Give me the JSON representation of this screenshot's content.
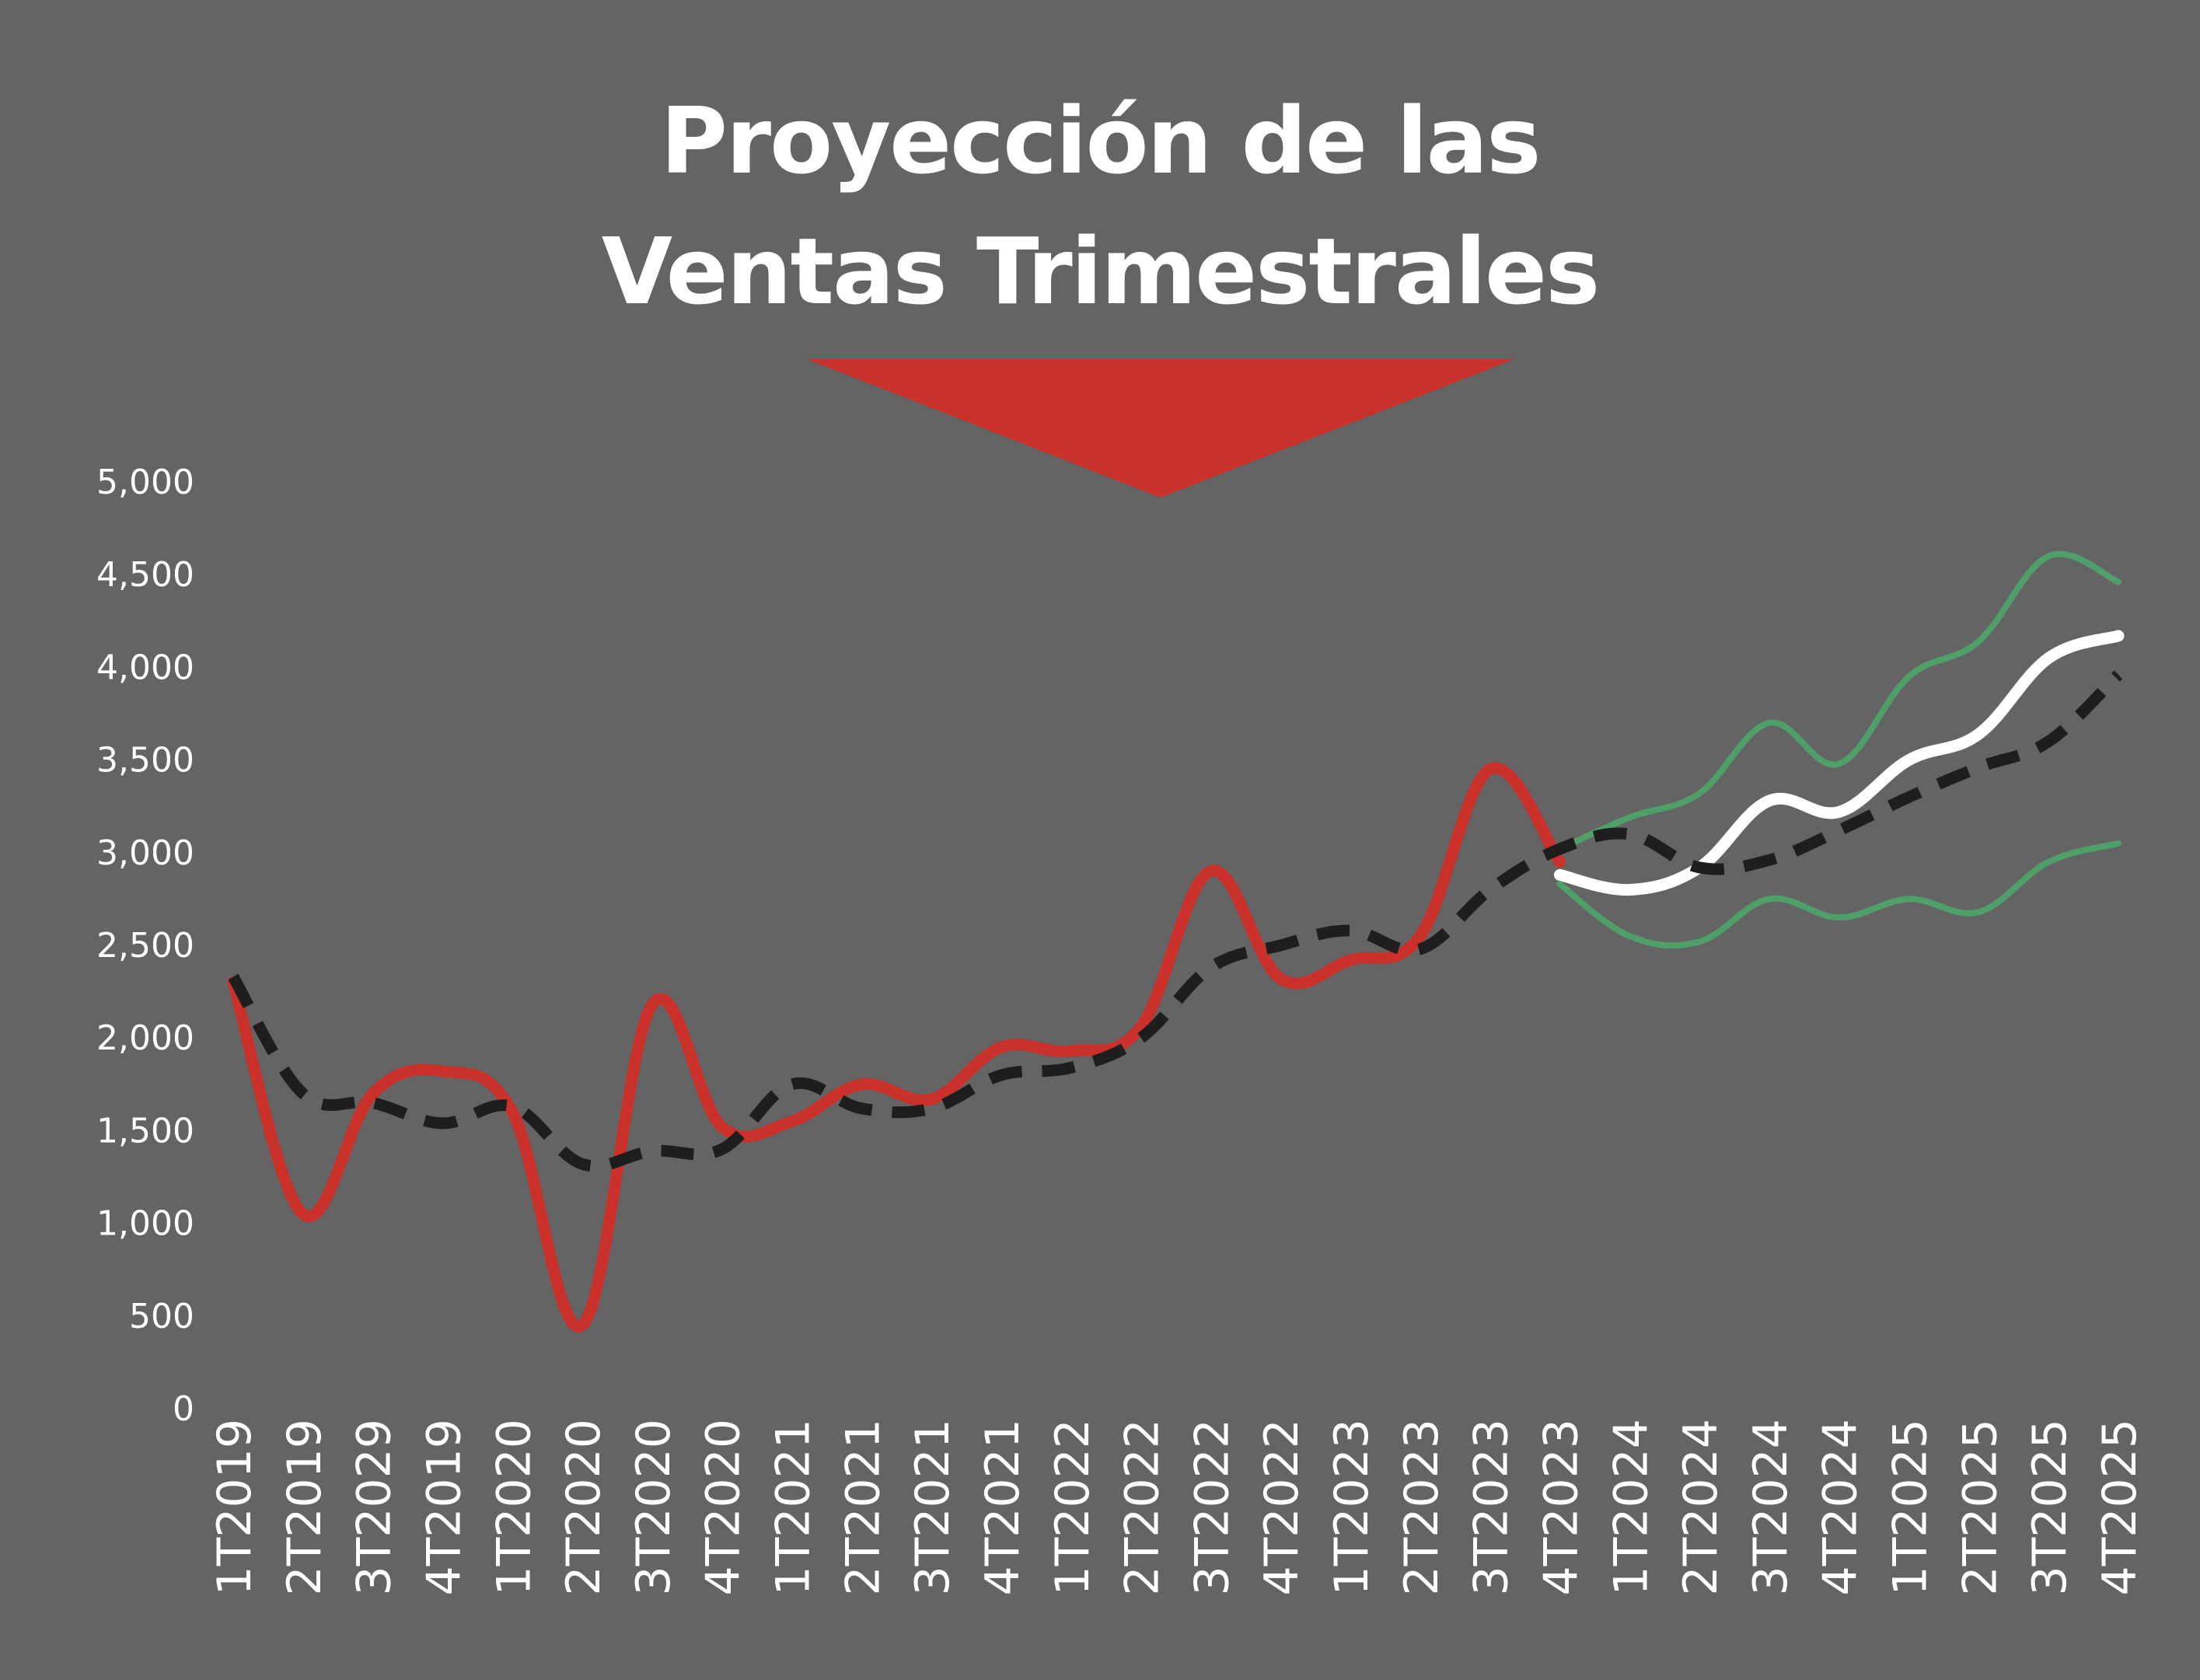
{
  "title": {
    "line1": "Proyección de las",
    "line2": "Ventas Trimestrales"
  },
  "colors": {
    "background": "#646464",
    "actual": "#c9312a",
    "trend": "#1e1e1e",
    "forecast": "#ffffff",
    "bounds": "#4ea068",
    "arrow": "#c9312a",
    "text": "#ffffff"
  },
  "chart_data": {
    "type": "line",
    "title": "Proyección de las Ventas Trimestrales",
    "xlabel": "",
    "ylabel": "",
    "ylim": [
      0,
      5000
    ],
    "yticks": [
      0,
      500,
      1000,
      1500,
      2000,
      2500,
      3000,
      3500,
      4000,
      4500,
      5000
    ],
    "ytick_labels": [
      "0",
      "500",
      "1,000",
      "1,500",
      "2,000",
      "2,500",
      "3,000",
      "3,500",
      "4,000",
      "4,500",
      "5,000"
    ],
    "categories": [
      "1T2019",
      "2T2019",
      "3T2029",
      "4T2019",
      "1T2020",
      "2T2020",
      "3T2020",
      "4T2020",
      "1T2021",
      "2T2021",
      "3T2021",
      "4T2021",
      "1T2022",
      "2T2022",
      "3T2022",
      "4T2022",
      "1T2023",
      "2T2023",
      "3T2023",
      "4T2023",
      "1T2024",
      "2T2024",
      "3T2024",
      "4T2024",
      "1T2025",
      "2T2025",
      "3T2025",
      "4T2025"
    ],
    "grid": false,
    "legend": "none",
    "series": [
      {
        "key": "actual",
        "style": "solid-thick",
        "color": "#c9312a",
        "values": [
          2300,
          1050,
          1700,
          1820,
          1600,
          450,
          2180,
          1520,
          1550,
          1750,
          1670,
          1950,
          1930,
          2060,
          2900,
          2320,
          2420,
          2550,
          3450,
          2950,
          null,
          null,
          null,
          null,
          null,
          null,
          null,
          null
        ]
      },
      {
        "key": "trend",
        "style": "dashed",
        "color": "#1e1e1e",
        "values": [
          2330,
          1700,
          1650,
          1540,
          1630,
          1320,
          1390,
          1400,
          1750,
          1620,
          1620,
          1800,
          1840,
          2000,
          2380,
          2500,
          2580,
          2480,
          2800,
          3020,
          3100,
          2920,
          2960,
          3120,
          3300,
          3460,
          3600,
          3960
        ]
      },
      {
        "key": "forecast",
        "style": "solid-thick",
        "color": "#ffffff",
        "values": [
          null,
          null,
          null,
          null,
          null,
          null,
          null,
          null,
          null,
          null,
          null,
          null,
          null,
          null,
          null,
          null,
          null,
          null,
          null,
          2880,
          2800,
          2920,
          3280,
          3220,
          3500,
          3640,
          4050,
          4170
        ]
      },
      {
        "key": "upper",
        "style": "solid-thin",
        "color": "#4ea068",
        "values": [
          null,
          null,
          null,
          null,
          null,
          null,
          null,
          null,
          null,
          null,
          null,
          null,
          null,
          null,
          null,
          null,
          null,
          null,
          null,
          3020,
          3190,
          3320,
          3700,
          3480,
          3950,
          4140,
          4600,
          4460
        ]
      },
      {
        "key": "lower",
        "style": "solid-thin",
        "color": "#4ea068",
        "values": [
          null,
          null,
          null,
          null,
          null,
          null,
          null,
          null,
          null,
          null,
          null,
          null,
          null,
          null,
          null,
          null,
          null,
          null,
          null,
          2830,
          2550,
          2520,
          2750,
          2650,
          2750,
          2680,
          2950,
          3050
        ]
      }
    ]
  }
}
